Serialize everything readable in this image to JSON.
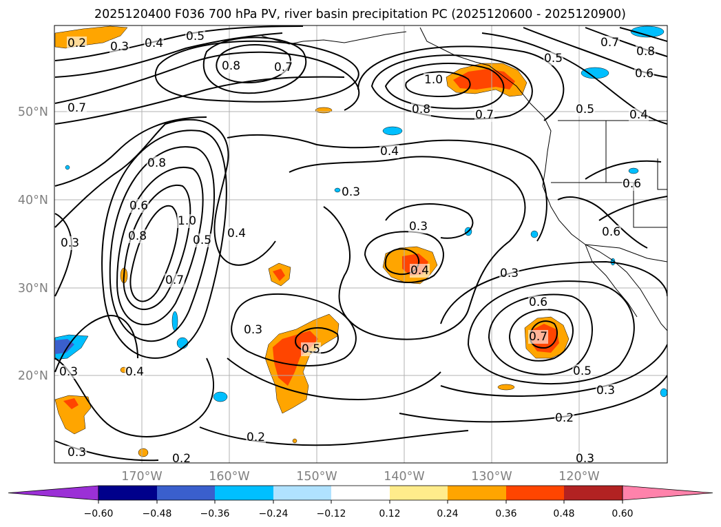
{
  "title": "2025120400 F036 700 hPa PV, river basin precipitation PC (2025120600 - 2025120900)",
  "map": {
    "lat_ticks": [
      "50°N",
      "40°N",
      "30°N",
      "20°N"
    ],
    "lon_ticks": [
      "170°W",
      "160°W",
      "150°W",
      "140°W",
      "130°W",
      "120°W"
    ]
  },
  "contour_labels": [
    "0.2",
    "0.3",
    "0.4",
    "0.5",
    "0.8",
    "0.7",
    "0.7",
    "1.0",
    "0.8",
    "0.7",
    "0.5",
    "0.7",
    "0.8",
    "0.6",
    "0.5",
    "0.4",
    "0.4",
    "0.3",
    "0.8",
    "0.6",
    "0.8",
    "1.0",
    "0.5",
    "0.7",
    "0.3",
    "0.4",
    "0.3",
    "0.4",
    "0.3",
    "0.6",
    "0.6",
    "0.3",
    "0.6",
    "0.7",
    "0.5",
    "0.3",
    "0.2",
    "0.3",
    "0.5",
    "0.4",
    "0.3",
    "0.2",
    "0.2",
    "0.3"
  ],
  "colorbar": {
    "labels": [
      "−0.60",
      "−0.48",
      "−0.36",
      "−0.24",
      "−0.12",
      "0.12",
      "0.24",
      "0.36",
      "0.48",
      "0.60"
    ],
    "colors": [
      "#9b30d6",
      "#00008b",
      "#3a5fcd",
      "#00bfff",
      "#b0e2ff",
      "#ffffff",
      "#ffec8b",
      "#ffa500",
      "#ff4500",
      "#b22222",
      "#ff82ab"
    ]
  }
}
